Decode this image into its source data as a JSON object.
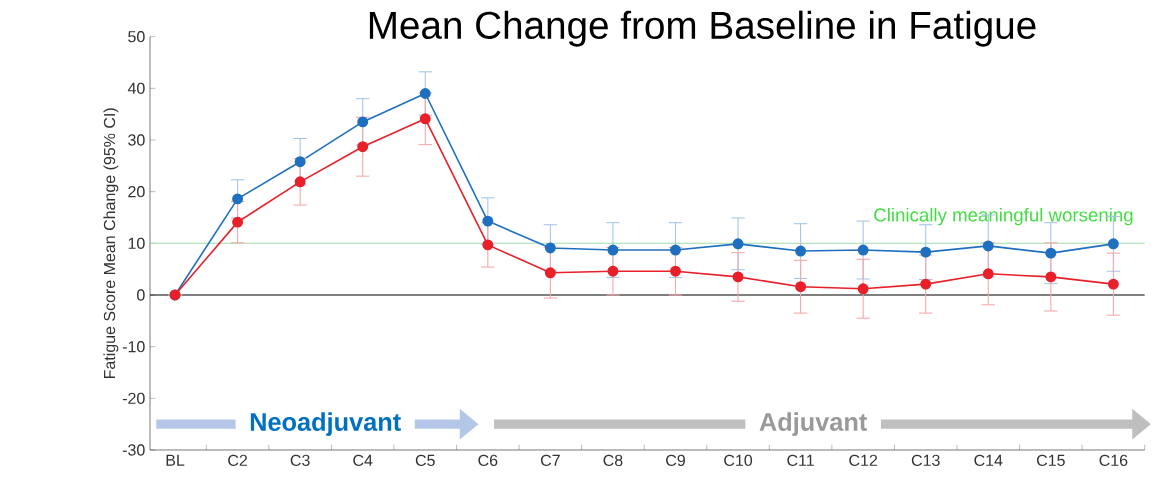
{
  "chart_data": {
    "type": "line",
    "title": "Mean Change from Baseline in Fatigue",
    "ylabel": "Fatigue Score Mean Change (95% CI)",
    "categories": [
      "BL",
      "C2",
      "C3",
      "C4",
      "C5",
      "C6",
      "C7",
      "C8",
      "C9",
      "C10",
      "C11",
      "C12",
      "C13",
      "C14",
      "C15",
      "C16"
    ],
    "series": [
      {
        "color": "#1f6fc0",
        "values": [
          0,
          18.6,
          25.8,
          33.5,
          39.0,
          14.3,
          9.1,
          8.7,
          8.7,
          9.9,
          8.5,
          8.7,
          8.3,
          9.5,
          8.1,
          9.9
        ],
        "errors": [
          null,
          3.7,
          4.5,
          4.5,
          4.2,
          4.5,
          4.5,
          5.3,
          5.3,
          5.0,
          5.3,
          5.6,
          5.3,
          6.0,
          5.9,
          5.3
        ]
      },
      {
        "color": "#e8202a",
        "values": [
          0,
          14.1,
          21.9,
          28.7,
          34.1,
          9.7,
          4.3,
          4.6,
          4.6,
          3.5,
          1.6,
          1.2,
          2.1,
          4.1,
          3.5,
          2.1
        ],
        "errors": [
          null,
          4.0,
          4.5,
          5.7,
          5.0,
          4.3,
          4.9,
          4.6,
          4.6,
          4.7,
          5.1,
          5.7,
          5.6,
          6.0,
          6.6,
          6.0
        ]
      }
    ],
    "ylim": [
      -30,
      50
    ],
    "yticks": [
      -30,
      -20,
      -10,
      0,
      10,
      20,
      30,
      40,
      50
    ],
    "ref_lines": [
      {
        "axis": "y",
        "value": 10,
        "label": "Clinically meaningful worsening",
        "color": "#9fdcae"
      },
      {
        "axis": "y",
        "value": 0,
        "color": "#000000"
      }
    ],
    "annotations": [
      "Neoadjuvant",
      "Adjuvant"
    ],
    "marker": "circle",
    "line_style": "solid"
  }
}
